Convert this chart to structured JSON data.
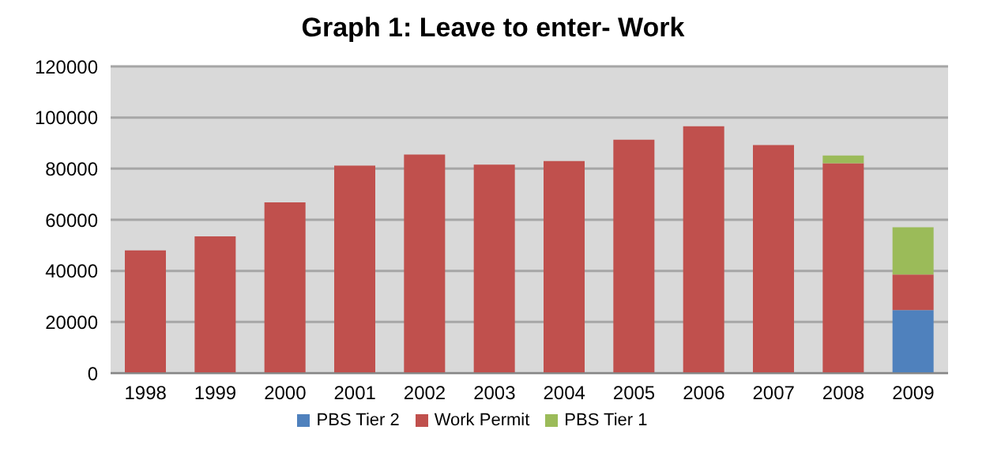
{
  "chart_data": {
    "type": "bar",
    "title": "Graph 1: Leave to enter- Work",
    "stacked": true,
    "categories": [
      "1998",
      "1999",
      "2000",
      "2001",
      "2002",
      "2003",
      "2004",
      "2005",
      "2006",
      "2007",
      "2008",
      "2009"
    ],
    "series": [
      {
        "name": "PBS Tier 2",
        "color": "#4f81bd",
        "values": [
          null,
          null,
          null,
          null,
          null,
          null,
          null,
          null,
          null,
          null,
          null,
          24700
        ]
      },
      {
        "name": "Work Permit",
        "color": "#c0504d",
        "values": [
          48000,
          53500,
          66800,
          81200,
          85500,
          81600,
          83000,
          91300,
          96600,
          89200,
          82100,
          13900
        ]
      },
      {
        "name": "PBS Tier 1",
        "color": "#9bbb59",
        "values": [
          null,
          null,
          null,
          null,
          null,
          null,
          null,
          null,
          null,
          null,
          3000,
          18500
        ]
      }
    ],
    "ylim": [
      0,
      120000
    ],
    "yticks": [
      0,
      20000,
      40000,
      60000,
      80000,
      100000,
      120000
    ],
    "grid": "y",
    "legend": "bottom"
  }
}
